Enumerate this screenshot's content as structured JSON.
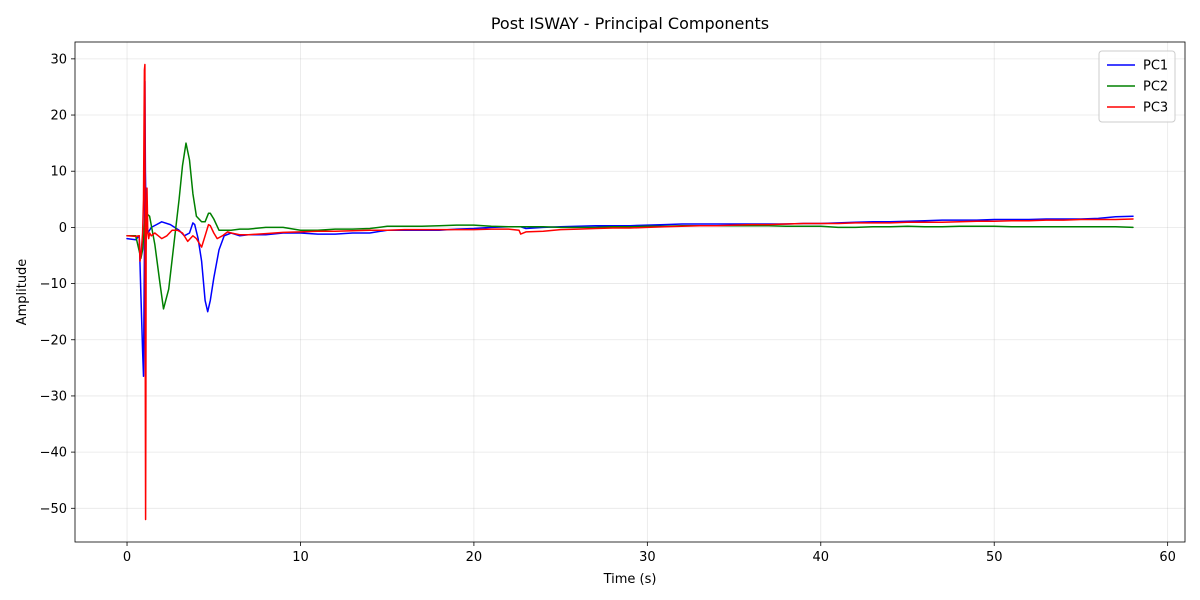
{
  "chart_data": {
    "type": "line",
    "title": "Post ISWAY - Principal Components",
    "xlabel": "Time (s)",
    "ylabel": "Amplitude",
    "xlim": [
      -3,
      61
    ],
    "ylim": [
      -56,
      33
    ],
    "x_ticks": [
      0,
      10,
      20,
      30,
      40,
      50,
      60
    ],
    "y_ticks": [
      -50,
      -40,
      -30,
      -20,
      -10,
      0,
      10,
      20,
      30
    ],
    "x_tick_labels": [
      "0",
      "10",
      "20",
      "30",
      "40",
      "50",
      "60"
    ],
    "y_tick_labels": [
      "−50",
      "−40",
      "−30",
      "−20",
      "−10",
      "0",
      "10",
      "20",
      "30"
    ],
    "grid": true,
    "legend_position": "top-right",
    "series": [
      {
        "name": "PC1",
        "color": "#0000ff",
        "x": [
          0,
          0.5,
          0.7,
          0.8,
          0.9,
          0.95,
          1.0,
          1.03,
          1.06,
          1.1,
          1.2,
          1.4,
          1.7,
          2.0,
          2.5,
          3.0,
          3.3,
          3.6,
          3.8,
          3.9,
          4.1,
          4.3,
          4.5,
          4.65,
          4.8,
          5.0,
          5.3,
          5.6,
          6.0,
          6.5,
          7.0,
          8.0,
          9.0,
          10,
          11,
          12,
          13,
          14,
          15,
          16,
          17,
          18,
          19,
          20,
          21,
          22,
          22.7,
          23,
          24,
          25,
          26,
          27,
          28,
          29,
          30,
          31,
          32,
          33,
          34,
          35,
          36,
          37,
          38,
          39,
          40,
          41,
          42,
          43,
          44,
          45,
          46,
          47,
          48,
          49,
          50,
          51,
          52,
          53,
          54,
          55,
          56,
          57,
          58
        ],
        "y": [
          -2,
          -2.2,
          -1.5,
          -12,
          -22,
          -26.5,
          -5,
          26,
          10,
          2,
          -1,
          0,
          0.5,
          1,
          0.5,
          -0.5,
          -1.5,
          -1,
          0.8,
          0.5,
          -2,
          -6,
          -13,
          -15,
          -13,
          -9,
          -4,
          -1.5,
          -1,
          -1.5,
          -1.3,
          -1.3,
          -1,
          -1,
          -1.2,
          -1.2,
          -1,
          -1,
          -0.5,
          -0.5,
          -0.5,
          -0.5,
          -0.3,
          -0.2,
          0,
          0.1,
          0.1,
          -0.2,
          0,
          0.1,
          0.2,
          0.3,
          0.3,
          0.3,
          0.4,
          0.5,
          0.6,
          0.6,
          0.6,
          0.6,
          0.6,
          0.6,
          0.6,
          0.7,
          0.7,
          0.8,
          0.9,
          1.0,
          1.0,
          1.1,
          1.2,
          1.3,
          1.3,
          1.3,
          1.4,
          1.4,
          1.4,
          1.5,
          1.5,
          1.5,
          1.6,
          1.9,
          2.0
        ]
      },
      {
        "name": "PC2",
        "color": "#008000",
        "x": [
          0,
          0.5,
          0.8,
          0.9,
          1.0,
          1.05,
          1.1,
          1.3,
          1.6,
          1.9,
          2.1,
          2.4,
          2.7,
          3.0,
          3.2,
          3.4,
          3.6,
          3.8,
          4.0,
          4.3,
          4.5,
          4.7,
          4.8,
          5.0,
          5.3,
          5.6,
          6.0,
          6.5,
          7.0,
          8.0,
          9.0,
          10,
          11,
          12,
          13,
          14,
          15,
          16,
          17,
          18,
          19,
          20,
          21,
          22,
          23,
          24,
          25,
          26,
          27,
          28,
          29,
          30,
          31,
          32,
          33,
          34,
          35,
          36,
          37,
          38,
          39,
          40,
          41,
          42,
          43,
          44,
          45,
          46,
          47,
          48,
          49,
          50,
          51,
          52,
          53,
          54,
          55,
          56,
          57,
          58
        ],
        "y": [
          -1.5,
          -1.5,
          -5.5,
          -4,
          0,
          2,
          2.5,
          2,
          -3,
          -10,
          -14.5,
          -11,
          -3,
          5,
          11,
          15,
          12,
          6,
          2,
          1,
          1,
          2.5,
          2.5,
          1.5,
          -0.5,
          -0.5,
          -0.5,
          -0.3,
          -0.3,
          0,
          0,
          -0.5,
          -0.5,
          -0.3,
          -0.3,
          -0.2,
          0.2,
          0.2,
          0.2,
          0.3,
          0.4,
          0.4,
          0.2,
          0.1,
          0.1,
          0.1,
          0,
          0,
          0,
          0.1,
          0.1,
          0.2,
          0.2,
          0.3,
          0.3,
          0.3,
          0.3,
          0.3,
          0.3,
          0.2,
          0.2,
          0.2,
          0,
          0,
          0.1,
          0.1,
          0.2,
          0.1,
          0.1,
          0.2,
          0.2,
          0.2,
          0.1,
          0.1,
          0.1,
          0.1,
          0.1,
          0.1,
          0.1,
          0.0
        ]
      },
      {
        "name": "PC3",
        "color": "#ff0000",
        "x": [
          0,
          0.5,
          0.7,
          0.75,
          0.8,
          0.85,
          0.9,
          0.95,
          1.0,
          1.03,
          1.05,
          1.07,
          1.09,
          1.1,
          1.12,
          1.15,
          1.2,
          1.25,
          1.3,
          1.4,
          1.6,
          1.8,
          2.0,
          2.3,
          2.6,
          2.9,
          3.2,
          3.5,
          3.8,
          4.0,
          4.3,
          4.5,
          4.7,
          4.8,
          5.0,
          5.2,
          5.5,
          5.8,
          6.0,
          6.5,
          7.0,
          8.0,
          9.0,
          10,
          11,
          12,
          13,
          14,
          15,
          16,
          17,
          18,
          19,
          20,
          21,
          22,
          22.6,
          22.7,
          23,
          24,
          25,
          26,
          27,
          28,
          29,
          30,
          31,
          32,
          33,
          34,
          35,
          36,
          37,
          38,
          39,
          40,
          41,
          42,
          43,
          44,
          45,
          46,
          47,
          48,
          49,
          50,
          51,
          52,
          53,
          54,
          55,
          56,
          57,
          58
        ],
        "y": [
          -1.5,
          -1.6,
          -1.5,
          -6,
          -5,
          -3,
          -1,
          5,
          28,
          29,
          -20,
          -52,
          -30,
          -5,
          3,
          7,
          -1,
          -2,
          -1,
          -1.5,
          -1,
          -1.5,
          -2,
          -1.5,
          -0.5,
          -0.5,
          -1,
          -2.5,
          -1.5,
          -2,
          -3.5,
          -1.5,
          0.5,
          0.3,
          -1,
          -2,
          -1.5,
          -0.8,
          -1,
          -1.3,
          -1.3,
          -1.1,
          -0.9,
          -0.8,
          -0.7,
          -0.7,
          -0.6,
          -0.5,
          -0.5,
          -0.4,
          -0.4,
          -0.4,
          -0.4,
          -0.4,
          -0.3,
          -0.3,
          -0.5,
          -1.2,
          -0.8,
          -0.7,
          -0.4,
          -0.3,
          -0.2,
          -0.1,
          -0.1,
          0,
          0.1,
          0.2,
          0.3,
          0.3,
          0.4,
          0.5,
          0.5,
          0.6,
          0.7,
          0.7,
          0.7,
          0.8,
          0.8,
          0.8,
          0.9,
          0.9,
          0.9,
          1.0,
          1.1,
          1.1,
          1.2,
          1.2,
          1.3,
          1.3,
          1.4,
          1.4,
          1.4,
          1.5
        ]
      }
    ]
  }
}
